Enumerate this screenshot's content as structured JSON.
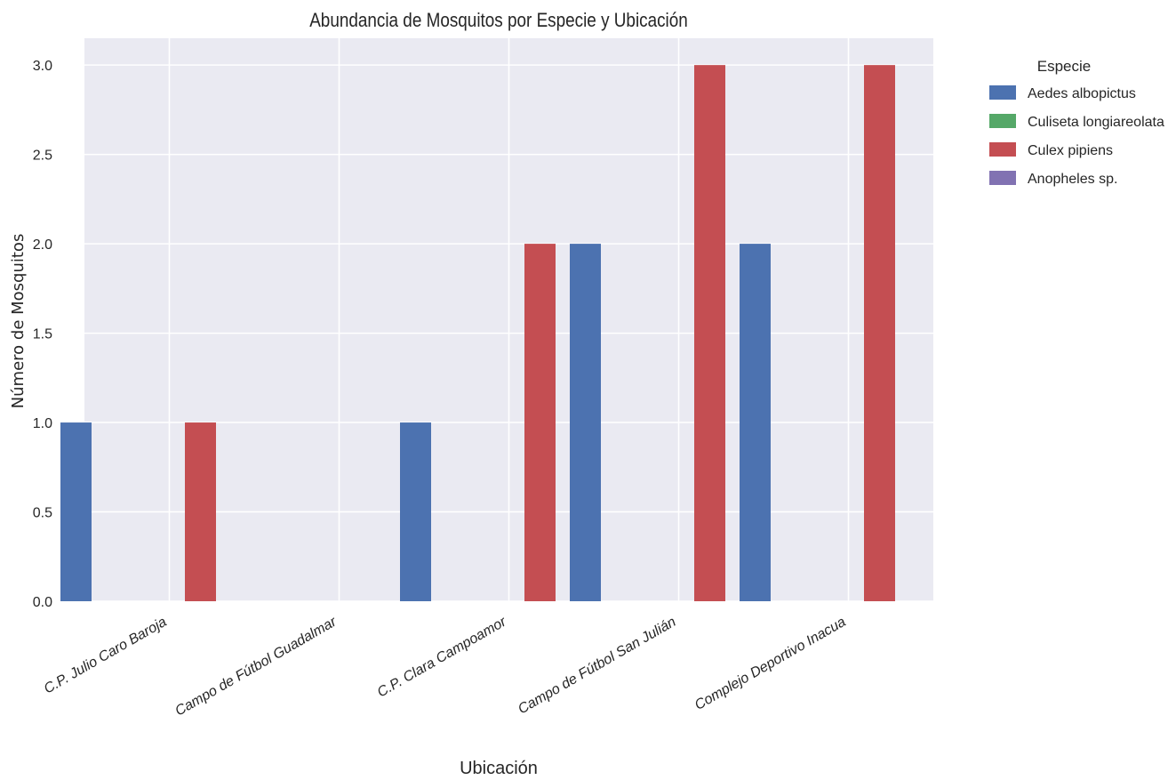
{
  "chart_data": {
    "type": "bar",
    "title": "Abundancia de Mosquitos por Especie y Ubicación",
    "xlabel": "Ubicación",
    "ylabel": "Número de Mosquitos",
    "categories": [
      "C.P. Julio Caro Baroja",
      "Campo de Fútbol Guadalmar",
      "C.P. Clara Campoamor",
      "Campo de Fútbol San Julián",
      "Complejo Deportivo Inacua"
    ],
    "series": [
      {
        "name": "Aedes albopictus",
        "color": "#4C72B0",
        "values": [
          1,
          0,
          1,
          2,
          2
        ]
      },
      {
        "name": "Culiseta longiareolata",
        "color": "#55A868",
        "values": [
          0,
          0,
          0,
          0,
          0
        ]
      },
      {
        "name": "Culex pipiens",
        "color": "#C44E52",
        "values": [
          1,
          0,
          2,
          3,
          3
        ]
      },
      {
        "name": "Anopheles sp.",
        "color": "#8172B2",
        "values": [
          0,
          0,
          0,
          0,
          0
        ]
      }
    ],
    "ylim": [
      0,
      3.15
    ],
    "yticks": [
      "0.0",
      "0.5",
      "1.0",
      "1.5",
      "2.0",
      "2.5",
      "3.0"
    ],
    "grid": true,
    "legend": {
      "title": "Especie",
      "placement": "outside-top-right"
    },
    "background": "#EAEAF2"
  }
}
